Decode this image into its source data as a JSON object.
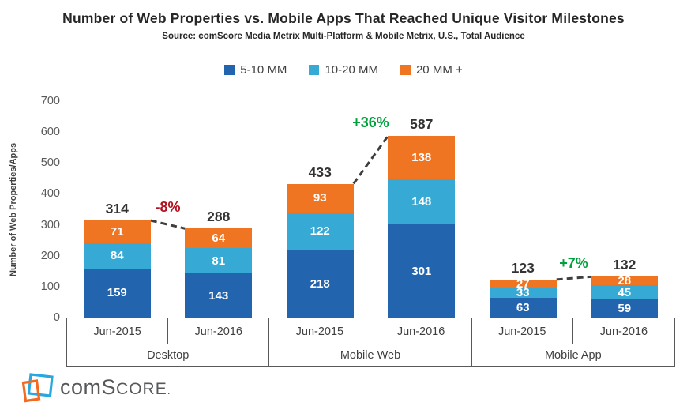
{
  "header": {
    "title": "Number of Web Properties vs. Mobile Apps That Reached Unique Visitor Milestones",
    "source": "Source: comScore Media Metrix Multi-Platform & Mobile Metrix, U.S., Total Audience"
  },
  "chart_data": {
    "type": "bar",
    "subtype": "stacked",
    "ylabel": "Number of Web Properties/Apps",
    "ylim": [
      0,
      700
    ],
    "yticks": [
      0,
      100,
      200,
      300,
      400,
      500,
      600,
      700
    ],
    "grid": false,
    "legend_position": "top",
    "connector_color": "#3F3F3F",
    "legend": [
      {
        "label": "5-10 MM",
        "color": "#2265AE"
      },
      {
        "label": "10-20 MM",
        "color": "#36A9D4"
      },
      {
        "label": "20 MM +",
        "color": "#EF7522"
      }
    ],
    "groups": [
      {
        "label": "Desktop",
        "change": "-8%",
        "change_color": "#B2121F",
        "bars": [
          {
            "label": "Jun-2015",
            "total": 314,
            "values": [
              159,
              84,
              71
            ]
          },
          {
            "label": "Jun-2016",
            "total": 288,
            "values": [
              143,
              81,
              64
            ]
          }
        ]
      },
      {
        "label": "Mobile Web",
        "change": "+36%",
        "change_color": "#00A03C",
        "bars": [
          {
            "label": "Jun-2015",
            "total": 433,
            "values": [
              218,
              122,
              93
            ]
          },
          {
            "label": "Jun-2016",
            "total": 587,
            "values": [
              301,
              148,
              138
            ]
          }
        ]
      },
      {
        "label": "Mobile App",
        "change": "+7%",
        "change_color": "#00A03C",
        "bars": [
          {
            "label": "Jun-2015",
            "total": 123,
            "values": [
              63,
              33,
              27
            ]
          },
          {
            "label": "Jun-2016",
            "total": 132,
            "values": [
              59,
              45,
              28
            ]
          }
        ]
      }
    ]
  },
  "footer": {
    "logo": {
      "com": "com",
      "s": "S",
      "core": "CORE",
      "dot": "."
    }
  }
}
